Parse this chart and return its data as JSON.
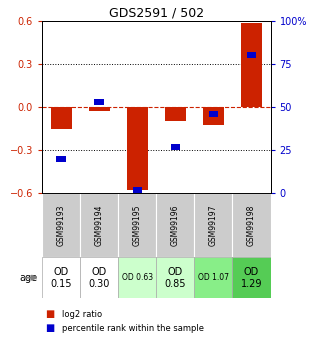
{
  "title": "GDS2591 / 502",
  "samples": [
    "GSM99193",
    "GSM99194",
    "GSM99195",
    "GSM99196",
    "GSM99197",
    "GSM99198"
  ],
  "log2_ratios": [
    -0.155,
    -0.025,
    -0.58,
    -0.1,
    -0.125,
    0.585
  ],
  "percentile_ranks": [
    20,
    53,
    2,
    27,
    46,
    80
  ],
  "age_labels": [
    "OD\n0.15",
    "OD\n0.30",
    "OD 0.63",
    "OD\n0.85",
    "OD 1.07",
    "OD\n1.29"
  ],
  "age_colors": [
    "#ffffff",
    "#ffffff",
    "#ccffcc",
    "#ccffcc",
    "#88ee88",
    "#55cc55"
  ],
  "age_fontsize": [
    7,
    7,
    5.5,
    7,
    5.5,
    7
  ],
  "bar_width": 0.55,
  "ylim_left": [
    -0.6,
    0.6
  ],
  "ylim_right": [
    0,
    100
  ],
  "yticks_left": [
    -0.6,
    -0.3,
    0.0,
    0.3,
    0.6
  ],
  "yticks_right": [
    0,
    25,
    50,
    75,
    100
  ],
  "ytick_labels_right": [
    "0",
    "25",
    "50",
    "75",
    "100%"
  ],
  "red_color": "#cc2200",
  "blue_color": "#0000cc",
  "bg_color": "#ffffff",
  "tick_label_color_left": "#cc2200",
  "tick_label_color_right": "#0000cc",
  "sample_bg": "#cccccc",
  "legend_red": "log2 ratio",
  "legend_blue": "percentile rank within the sample"
}
